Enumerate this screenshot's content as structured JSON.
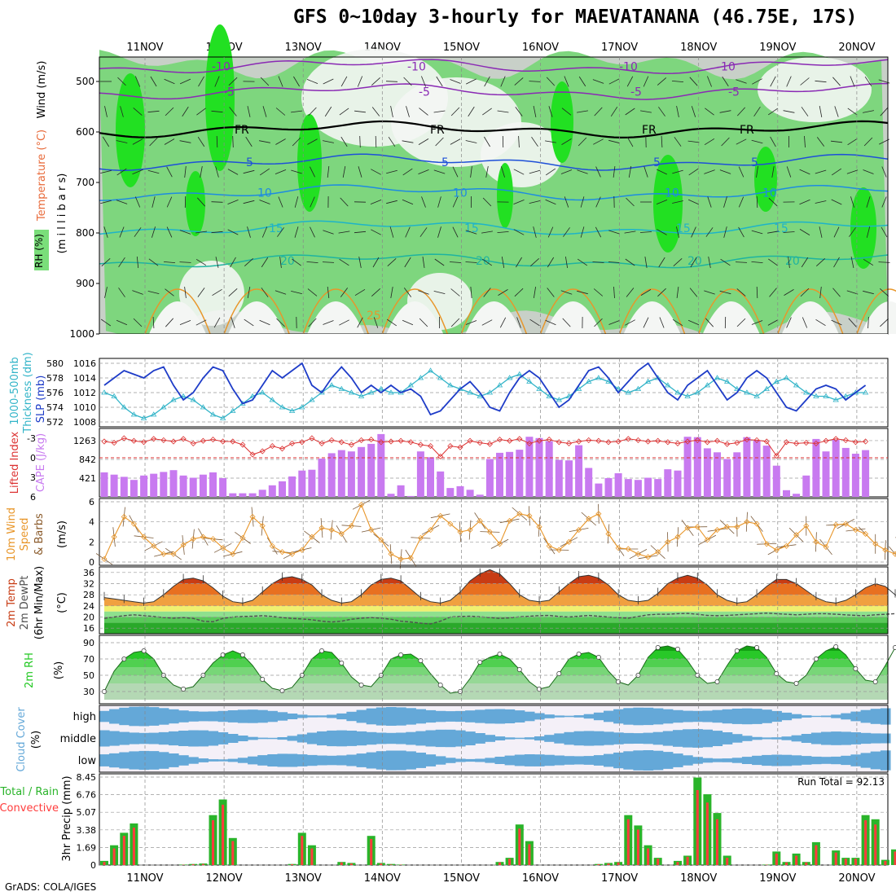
{
  "title": "GFS 0~10day 3-hourly for MAEVATANANA (46.75E, 17S)",
  "footer": "GrADS: COLA/IGES",
  "colors": {
    "rh_low": "#f4f6f4",
    "rh_mid": "#c8d0c8",
    "rh_wet": "#7ed67e",
    "rh_sat": "#22e022",
    "slp": "#1e3cc8",
    "thickness": "#32b4c8",
    "lifted_index": "#dc3232",
    "cape": "#c87af0",
    "wind10m": "#e8962a",
    "temp": "#c83c14",
    "dewpt": "#505050",
    "rh2m": "#22c822",
    "cloud": "#64a8d8",
    "precip_total": "#2ab42a",
    "precip_conv": "#ff3c3c"
  },
  "dates": [
    "11NOV",
    "12NOV",
    "13NOV",
    "14NOV",
    "15NOV",
    "16NOV",
    "17NOV",
    "18NOV",
    "19NOV",
    "20NOV"
  ],
  "panels": {
    "profile": {
      "label_wind": "Wind (m/s)",
      "label_temp": "Temperature (°C)",
      "label_rh": "RH (%)",
      "ylabel": "(m i l l i b a r s)",
      "ticks": [
        "500",
        "600",
        "700",
        "800",
        "900",
        "1000"
      ],
      "isotherm_labels": [
        "-10",
        "-5",
        "FR",
        "5",
        "10",
        "15",
        "20",
        "25"
      ]
    },
    "slp": {
      "label_left": "1000-500mb",
      "label_left2": "Thickness (dm)",
      "label_right": "SLP (mb)",
      "ticks_left": [
        "580",
        "578",
        "576",
        "574",
        "572"
      ],
      "ticks_right": [
        "1016",
        "1014",
        "1012",
        "1010",
        "1008"
      ]
    },
    "cape": {
      "label_left": "Lifted Index",
      "label_right": "CAPE (J/kg)",
      "ticks_left": [
        "-3",
        "0",
        "3",
        "6"
      ],
      "ticks_right": [
        "1263",
        "842",
        "421"
      ]
    },
    "wind": {
      "label_left": "10m Wind",
      "label_left2": "Speed",
      "label_left3": "& Barbs",
      "ylabel": "(m/s)",
      "ticks": [
        "6",
        "4",
        "2",
        "0"
      ]
    },
    "temp": {
      "label_left": "2m Temp",
      "label_left2": "2m DewPt",
      "label_left3": "(6hr Min/Max)",
      "ylabel": "(°C)",
      "ticks": [
        "36",
        "32",
        "28",
        "24",
        "20",
        "16"
      ]
    },
    "rh": {
      "label_left": "2m RH",
      "ylabel": "(%)",
      "ticks": [
        "90",
        "70",
        "50",
        "30"
      ]
    },
    "cloud": {
      "label_left": "Cloud Cover",
      "ylabel": "(%)",
      "levels": [
        "high",
        "middle",
        "low"
      ]
    },
    "precip": {
      "label_total": "Total / Rain",
      "label_conv": "Convective",
      "ylabel": "3hr Precip (mm)",
      "ticks": [
        "8.45",
        "6.76",
        "5.07",
        "3.38",
        "1.69",
        "0"
      ],
      "run_total": "Run Total = 92.13"
    }
  },
  "chart_data": [
    {
      "type": "line",
      "title": "Sea level pressure & 1000-500mb thickness",
      "series": [
        {
          "name": "SLP (mb)",
          "values": [
            1013,
            1014,
            1015,
            1014.5,
            1014,
            1015,
            1015.5,
            1013,
            1011,
            1012,
            1014,
            1015.5,
            1015,
            1012.5,
            1010.5,
            1011,
            1013,
            1015,
            1014,
            1015,
            1016,
            1013,
            1012,
            1014,
            1015.5,
            1014,
            1012,
            1013,
            1012,
            1013,
            1012,
            1012.5,
            1011.5,
            1009,
            1009.5,
            1011,
            1012.5,
            1013.5,
            1012,
            1010,
            1009.5,
            1012,
            1014,
            1015,
            1014,
            1012,
            1010,
            1011,
            1013,
            1015,
            1015.5,
            1014,
            1012,
            1013.5,
            1015,
            1016,
            1014,
            1012,
            1011,
            1013,
            1014,
            1015,
            1013,
            1011,
            1012,
            1014,
            1015,
            1014,
            1012,
            1010,
            1009.5,
            1011,
            1012.5,
            1013,
            1012.5,
            1011,
            1012,
            1013
          ]
        },
        {
          "name": "Thickness (dm)",
          "values": [
            576,
            575.5,
            574,
            573,
            572.5,
            573,
            574,
            575,
            575.5,
            575,
            574,
            573,
            572.5,
            573.5,
            574.5,
            575.5,
            576,
            575,
            574,
            573.5,
            574,
            575,
            576,
            577,
            576.5,
            576,
            575.5,
            576,
            576.5,
            576,
            576,
            577,
            578,
            579,
            578,
            577,
            576.5,
            576,
            575.5,
            576,
            577,
            578,
            578.5,
            577.5,
            576.5,
            575.5,
            575,
            575.5,
            576.5,
            577.5,
            578,
            577.5,
            576.5,
            576,
            576.5,
            577.5,
            578,
            577,
            576,
            575.5,
            576,
            577,
            578,
            577.5,
            576.5,
            576,
            575.5,
            576.5,
            577.5,
            578,
            577,
            576,
            575.5,
            575.5,
            575,
            575.5,
            576,
            576
          ]
        }
      ]
    },
    {
      "type": "bar",
      "title": "CAPE (J/kg) & Lifted Index",
      "series": [
        {
          "name": "CAPE (J/kg)",
          "values": [
            550,
            500,
            450,
            380,
            480,
            520,
            560,
            600,
            480,
            430,
            500,
            550,
            420,
            80,
            80,
            80,
            160,
            260,
            350,
            460,
            590,
            610,
            860,
            980,
            1050,
            1020,
            1120,
            1190,
            1410,
            70,
            260,
            20,
            1020,
            890,
            570,
            200,
            240,
            160,
            50,
            850,
            990,
            1010,
            1060,
            1350,
            1320,
            1250,
            830,
            820,
            1160,
            650,
            300,
            420,
            530,
            400,
            380,
            430,
            400,
            620,
            590,
            1350,
            1340,
            1090,
            1000,
            850,
            1000,
            1340,
            1270,
            1150,
            700,
            150,
            70,
            480,
            1300,
            1020,
            1280,
            1100,
            970,
            1050
          ]
        },
        {
          "name": "Lifted Index",
          "values": [
            -2.5,
            -2.3,
            -3,
            -2.6,
            -2.4,
            -2.9,
            -2.7,
            -2.5,
            -2.9,
            -2.2,
            -2.6,
            -2.8,
            -2.5,
            -2.5,
            -2,
            -0.5,
            -1,
            -1.8,
            -1.4,
            -2.2,
            -2.4,
            -3,
            -2.2,
            -2.7,
            -2.4,
            -2,
            -2.7,
            -2.8,
            -2.4,
            -2.5,
            -2.6,
            -2.4,
            -2,
            -1.8,
            -0.2,
            -1.8,
            -1.6,
            -2.6,
            -2.3,
            -2.1,
            -2.8,
            -2.6,
            -2.9,
            -2.2,
            -2.6,
            -2.8,
            -2.4,
            -2.2,
            -2.5,
            -2.7,
            -2.6,
            -2.4,
            -2.5,
            -2.9,
            -2.7,
            -2.5,
            -2.6,
            -2.4,
            -2.2,
            -2.5,
            -2.7,
            -2.4,
            -2.6,
            -2.1,
            -2.3,
            -2.8,
            -2.7,
            -2.5,
            -0.3,
            -2.4,
            -2.2,
            -2.3,
            -2.2,
            -2.6,
            -2.9,
            -2.7,
            -2.4,
            -2.5
          ]
        }
      ]
    },
    {
      "type": "line",
      "title": "10m wind speed (m/s)",
      "series": [
        {
          "name": "Speed",
          "values": [
            0.3,
            2.5,
            4.5,
            3.8,
            2.5,
            1.6,
            0.8,
            0.8,
            1.7,
            2.3,
            2.5,
            2.3,
            1.4,
            0.8,
            2.4,
            4.5,
            3.6,
            1.6,
            1.0,
            0.8,
            1.2,
            2.5,
            3.4,
            3.2,
            2.8,
            3.6,
            5.7,
            3.2,
            2.2,
            0.8,
            0.3,
            0.4,
            2.4,
            3.2,
            4.6,
            3.8,
            3.0,
            3.2,
            4.1,
            3.0,
            1.8,
            4.1,
            4.8,
            4.6,
            3.5,
            1.6,
            1.2,
            2.0,
            3.2,
            4.3,
            4.8,
            2.8,
            1.4,
            1.3,
            0.8,
            0.5,
            1.0,
            2.0,
            2.5,
            3.4,
            3.5,
            2.2,
            3.2,
            3.5,
            3.5,
            4.0,
            3.8,
            1.8,
            1.2,
            1.6,
            2.7,
            3.6,
            2.0,
            1.5,
            3.7,
            3.8,
            3.2,
            2.8,
            1.8,
            1.2,
            0.8,
            2.5
          ]
        }
      ]
    },
    {
      "type": "area",
      "title": "2m temperature & dew point (°C)",
      "series": [
        {
          "name": "Temp",
          "values": [
            27,
            26.5,
            26,
            25.5,
            25,
            25.5,
            28,
            31,
            33.5,
            34,
            33,
            30.5,
            27.5,
            25.5,
            25,
            26,
            29,
            32,
            34,
            34.5,
            33.5,
            31.5,
            28,
            26,
            25,
            25.5,
            28,
            31.5,
            33.5,
            34,
            33,
            30,
            27,
            25.5,
            25,
            26,
            29,
            33,
            35.5,
            37,
            35.5,
            32,
            28,
            26,
            25.5,
            26,
            29,
            32,
            34.5,
            35,
            34,
            31.5,
            28,
            26,
            25.5,
            26,
            28.5,
            32,
            34,
            35,
            34,
            31.5,
            28,
            26,
            25,
            25.5,
            28,
            31,
            33.5,
            33.5,
            32,
            29.5,
            27,
            25.5,
            25,
            26,
            28,
            30.5,
            32,
            31,
            28,
            26,
            25,
            29
          ]
        },
        {
          "name": "DewPt",
          "values": [
            19.5,
            20,
            20.5,
            20.8,
            20.5,
            20.2,
            19.8,
            19.6,
            19.8,
            19.5,
            18.5,
            18.3,
            19.5,
            20,
            20.2,
            20.3,
            20.5,
            20.2,
            19.8,
            19.5,
            19.3,
            19,
            18.5,
            18.2,
            18.5,
            19.2,
            19.6,
            19.8,
            19.6,
            19.2,
            18.5,
            18.2,
            17.8,
            17.5,
            18.5,
            20,
            20.2,
            20.3,
            20.1,
            19.8,
            19.5,
            19.7,
            20.1,
            20.3,
            20.5,
            20.6,
            20.2,
            20,
            20.3,
            20.6,
            20.3,
            20,
            19.8,
            19.6,
            20.2,
            20.8,
            21,
            21,
            21.2,
            21.3,
            21,
            20.6,
            20.5,
            20.6,
            20.8,
            21,
            21.2,
            21.4,
            21.2,
            21,
            20.8,
            21,
            21.2,
            21.2,
            21,
            20.8,
            20.6,
            20.5,
            20.8,
            21,
            21.2,
            21
          ]
        }
      ]
    },
    {
      "type": "area",
      "title": "2m RH (%)",
      "series": [
        {
          "name": "RH",
          "values": [
            30,
            55,
            70,
            78,
            80,
            70,
            50,
            38,
            33,
            36,
            50,
            65,
            75,
            80,
            75,
            62,
            45,
            34,
            31,
            35,
            50,
            70,
            80,
            78,
            65,
            48,
            38,
            36,
            50,
            70,
            75,
            76,
            68,
            52,
            38,
            28,
            30,
            46,
            66,
            72,
            76,
            70,
            57,
            42,
            33,
            36,
            52,
            70,
            76,
            78,
            72,
            55,
            42,
            38,
            50,
            72,
            84,
            86,
            82,
            68,
            50,
            40,
            42,
            62,
            80,
            86,
            84,
            72,
            52,
            42,
            40,
            50,
            70,
            80,
            85,
            75,
            58,
            44,
            42,
            62,
            84,
            88,
            82,
            62
          ]
        }
      ]
    },
    {
      "type": "bar",
      "title": "3hr precipitation (mm)",
      "series": [
        {
          "name": "Total",
          "values": [
            0.4,
            1.9,
            3.1,
            4.0,
            0,
            0,
            0,
            0,
            0.05,
            0.1,
            0.15,
            4.8,
            6.3,
            2.6,
            0,
            0,
            0,
            0,
            0,
            0.1,
            3.1,
            1.9,
            0,
            0,
            0.3,
            0.2,
            0,
            2.8,
            0.2,
            0.1,
            0.05,
            0,
            0,
            0,
            0,
            0,
            0,
            0,
            0,
            0,
            0.3,
            0.7,
            3.9,
            2.3,
            0,
            0,
            0,
            0,
            0,
            0,
            0.1,
            0.2,
            0.3,
            4.8,
            3.8,
            1.9,
            0.7,
            0,
            0.4,
            0.9,
            8.4,
            6.8,
            5.0,
            0.9,
            0,
            0,
            0,
            0.05,
            1.3,
            0.3,
            1.1,
            0.3,
            2.2,
            0,
            1.4,
            0.7,
            0.7,
            4.8,
            4.4,
            0.5,
            1.5,
            4.9
          ]
        },
        {
          "name": "Convective",
          "values": [
            0.3,
            1.6,
            2.8,
            3.6,
            0,
            0,
            0,
            0,
            0.03,
            0.08,
            0.1,
            4.3,
            5.8,
            2.3,
            0,
            0,
            0,
            0,
            0,
            0.08,
            2.8,
            1.6,
            0,
            0,
            0.25,
            0.15,
            0,
            2.5,
            0.15,
            0.05,
            0.03,
            0,
            0,
            0,
            0,
            0,
            0,
            0,
            0,
            0,
            0.25,
            0.6,
            3.5,
            2.0,
            0,
            0,
            0,
            0,
            0,
            0,
            0.08,
            0.15,
            0.25,
            4.4,
            3.4,
            1.6,
            0.6,
            0,
            0.3,
            0.8,
            7.2,
            6.0,
            4.4,
            0.7,
            0,
            0,
            0,
            0.03,
            1.1,
            0.25,
            0.9,
            0.25,
            1.9,
            0,
            1.2,
            0.6,
            0.6,
            4.3,
            3.9,
            0.4,
            1.3,
            4.4
          ]
        }
      ]
    }
  ]
}
